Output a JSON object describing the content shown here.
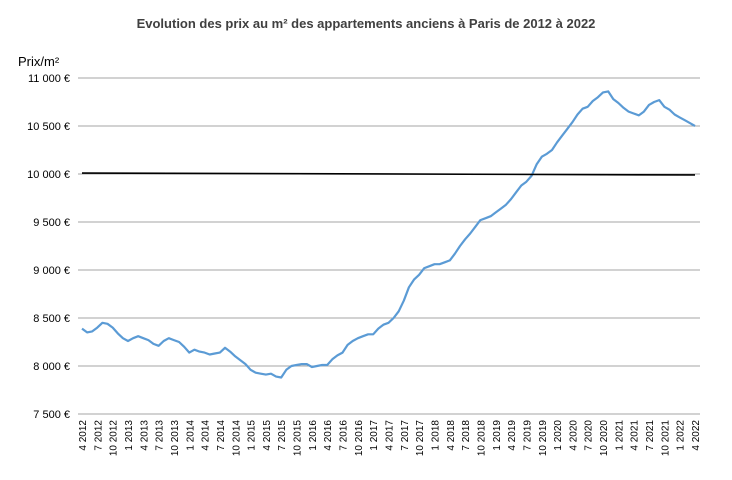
{
  "chart_data": {
    "type": "line",
    "title": "Evolution des prix au m² des appartements anciens à Paris de 2012 à 2022",
    "ylabel": "Prix/m²",
    "xlabel": "",
    "ylim": [
      7500,
      11000
    ],
    "y_ticks": [
      7500,
      8000,
      8500,
      9000,
      9500,
      10000,
      10500,
      11000
    ],
    "y_tick_labels": [
      "7 500 €",
      "8 000 €",
      "8 500 €",
      "9 000 €",
      "9 500 €",
      "10 000 €",
      "10 500 €",
      "11 000 €"
    ],
    "grid": "horizontal",
    "x_tick_labels": [
      "4 2012",
      "7 2012",
      "10 2012",
      "1 2013",
      "4 2013",
      "7 2013",
      "10 2013",
      "1 2014",
      "4 2014",
      "7 2014",
      "10 2014",
      "1 2015",
      "4 2015",
      "7 2015",
      "10 2015",
      "1 2016",
      "4 2016",
      "7 2016",
      "10 2016",
      "1 2017",
      "4 2017",
      "7 2017",
      "10 2017",
      "1 2018",
      "4 2018",
      "7 2018",
      "10 2018",
      "1 2019",
      "4 2019",
      "7 2019",
      "10 2019",
      "1 2020",
      "4 2020",
      "7 2020",
      "10 2020",
      "1 2021",
      "4 2021",
      "7 2021",
      "10 2021",
      "1 2022",
      "4 2022"
    ],
    "series": [
      {
        "color": "#5b9bd5",
        "values": [
          8390,
          8350,
          8360,
          8400,
          8450,
          8440,
          8400,
          8340,
          8290,
          8260,
          8290,
          8310,
          8290,
          8270,
          8230,
          8210,
          8260,
          8290,
          8270,
          8250,
          8200,
          8140,
          8170,
          8150,
          8140,
          8120,
          8130,
          8140,
          8190,
          8150,
          8100,
          8060,
          8020,
          7960,
          7930,
          7920,
          7910,
          7920,
          7890,
          7880,
          7960,
          8000,
          8010,
          8020,
          8020,
          7990,
          8000,
          8010,
          8010,
          8070,
          8110,
          8140,
          8220,
          8260,
          8290,
          8310,
          8330,
          8330,
          8390,
          8430,
          8450,
          8500,
          8570,
          8680,
          8820,
          8900,
          8950,
          9020,
          9040,
          9060,
          9060,
          9080,
          9100,
          9170,
          9250,
          9320,
          9380,
          9450,
          9520,
          9540,
          9560,
          9600,
          9640,
          9680,
          9740,
          9810,
          9880,
          9920,
          9980,
          10100,
          10180,
          10210,
          10250,
          10330,
          10400,
          10470,
          10540,
          10620,
          10680,
          10700,
          10760,
          10800,
          10850,
          10860,
          10780,
          10740,
          10690,
          10650,
          10630,
          10610,
          10650,
          10720,
          10750,
          10770,
          10700,
          10670,
          10620,
          10590,
          10560,
          10530,
          10500
        ]
      },
      {
        "color": "#000000",
        "values_start_end": [
          10010,
          9990
        ]
      }
    ]
  }
}
